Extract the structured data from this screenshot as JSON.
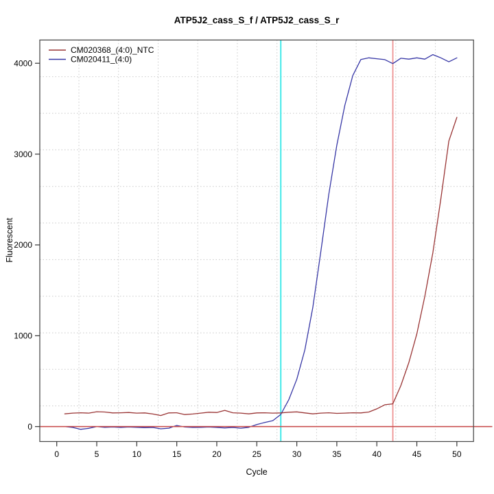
{
  "chart_data": {
    "type": "line",
    "title": "ATP5J2_cass_S_f / ATP5J2_cass_S_r",
    "xlabel": "Cycle",
    "ylabel": "Fluorescent",
    "xlim": [
      -2.1,
      52.1
    ],
    "ylim": [
      -165,
      4255
    ],
    "x_ticks": [
      0,
      5,
      10,
      15,
      20,
      25,
      30,
      35,
      40,
      45,
      50
    ],
    "y_ticks": [
      0,
      1000,
      2000,
      3000,
      4000
    ],
    "grid": {
      "style": "dotted",
      "color": "#c8c8c8",
      "x_lines": [
        2.77,
        7.72,
        12.67,
        17.62,
        22.57,
        27.52,
        32.47,
        37.42,
        42.37,
        47.32
      ],
      "y_lines": [
        227,
        630,
        1032,
        1435,
        1838,
        2241,
        2644,
        3047,
        3449,
        3852
      ]
    },
    "x": [
      1,
      2,
      3,
      4,
      5,
      6,
      7,
      8,
      9,
      10,
      11,
      12,
      13,
      14,
      15,
      16,
      17,
      18,
      19,
      20,
      21,
      22,
      23,
      24,
      25,
      26,
      27,
      28,
      29,
      30,
      31,
      32,
      33,
      34,
      35,
      36,
      37,
      38,
      39,
      40,
      41,
      42,
      43,
      44,
      45,
      46,
      47,
      48,
      49,
      50
    ],
    "series": [
      {
        "name": "CM020368_(4:0)_NTC",
        "color": "#993333",
        "values": [
          140,
          148,
          152,
          148,
          163,
          160,
          150,
          152,
          155,
          148,
          150,
          138,
          122,
          150,
          152,
          132,
          138,
          148,
          158,
          155,
          178,
          152,
          148,
          140,
          150,
          152,
          148,
          150,
          158,
          162,
          150,
          140,
          148,
          152,
          145,
          148,
          152,
          150,
          160,
          195,
          240,
          250,
          450,
          705,
          1020,
          1435,
          1915,
          2505,
          3145,
          3405
        ]
      },
      {
        "name": "CM020411_(4:0)",
        "color": "#3535a5",
        "values": [
          0,
          -10,
          -30,
          -20,
          0,
          -8,
          -5,
          -10,
          -5,
          -8,
          -12,
          -10,
          -25,
          -18,
          12,
          -5,
          -10,
          -8,
          -5,
          -10,
          -15,
          -10,
          -18,
          -8,
          22,
          45,
          65,
          134,
          295,
          521,
          844,
          1310,
          1926,
          2556,
          3097,
          3537,
          3865,
          4041,
          4060,
          4050,
          4040,
          3996,
          4055,
          4045,
          4060,
          4045,
          4095,
          4060,
          4016,
          4060
        ]
      }
    ],
    "reference_lines": {
      "horizontal": [
        {
          "y": 0,
          "color": "#c94f4f",
          "name": "zero-baseline"
        }
      ],
      "vertical": [
        {
          "x": 28,
          "color": "#2ee6e6",
          "name": "cyan-cycle-marker"
        },
        {
          "x": 42,
          "color": "#ee9494",
          "name": "salmon-cycle-marker"
        }
      ]
    },
    "legend": {
      "position": "top-left",
      "entries": [
        "CM020368_(4:0)_NTC",
        "CM020411_(4:0)"
      ]
    }
  }
}
